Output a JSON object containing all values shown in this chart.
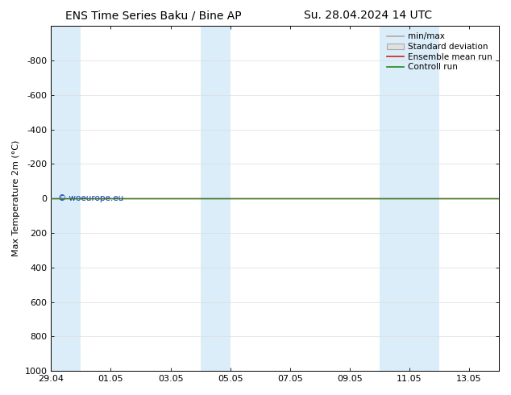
{
  "title_left": "ENS Time Series Baku / Bine AP",
  "title_right": "Su. 28.04.2024 14 UTC",
  "ylabel": "Max Temperature 2m (°C)",
  "ylim_top": -1000,
  "ylim_bottom": 1000,
  "yticks": [
    -800,
    -600,
    -400,
    -200,
    0,
    200,
    400,
    600,
    800,
    1000
  ],
  "xtick_labels": [
    "29.04",
    "01.05",
    "03.05",
    "05.05",
    "07.05",
    "09.05",
    "11.05",
    "13.05"
  ],
  "xtick_positions": [
    0,
    2,
    4,
    6,
    8,
    10,
    12,
    14
  ],
  "xlim": [
    0,
    15
  ],
  "shaded_bands": [
    [
      0,
      1
    ],
    [
      5,
      6
    ],
    [
      11,
      12
    ],
    [
      12,
      13
    ]
  ],
  "shade_color": "#dbedf9",
  "green_line_y": 0,
  "red_line_y": 0,
  "green_color": "#228822",
  "red_color": "#cc2222",
  "copyright_text": "© woeurope.eu",
  "copyright_color": "#1133cc",
  "background_color": "#ffffff",
  "plot_bg_color": "#ffffff",
  "legend_items": [
    "min/max",
    "Standard deviation",
    "Ensemble mean run",
    "Controll run"
  ],
  "legend_line_colors": [
    "#aaaaaa",
    "#cccccc",
    "#cc2222",
    "#228822"
  ],
  "title_fontsize": 10,
  "axis_fontsize": 8,
  "tick_fontsize": 8,
  "legend_fontsize": 7.5
}
